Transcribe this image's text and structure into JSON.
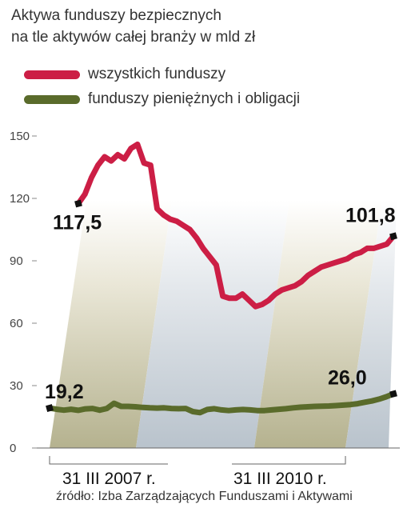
{
  "chart_data": {
    "type": "line",
    "title": "Aktywa  funduszy bezpiecznych",
    "subtitle": "na tle aktywów całej branży w mld zł",
    "ylim": [
      0,
      150
    ],
    "y_ticks": [
      "0",
      "30",
      "60",
      "90",
      "120",
      "150"
    ],
    "x_labels": [
      "31 III 2007 r.",
      "31 III 2010 r."
    ],
    "grid": false,
    "legend_position": "top-left",
    "series": [
      {
        "name": "wszystkich funduszy",
        "color": "#cc1e45",
        "start_label": "117,5",
        "end_label": "101,8",
        "values": [
          117.5,
          122,
          130,
          136,
          140,
          138,
          141,
          139,
          144,
          146,
          137,
          136,
          115,
          112,
          110,
          109,
          107,
          105,
          101,
          96,
          92,
          88,
          73,
          72,
          72,
          74,
          71,
          68,
          69,
          71,
          74,
          76,
          77,
          78,
          80,
          83,
          85,
          87,
          88,
          89,
          90,
          91,
          93,
          94,
          96,
          96,
          97,
          98,
          101.8
        ]
      },
      {
        "name": "funduszy pieniężnych i obligacji",
        "color": "#5a6b2b",
        "start_label": "19,2",
        "end_label": "26,0",
        "values": [
          19.2,
          18.6,
          18.2,
          18.6,
          18.1,
          18.8,
          19.0,
          18.2,
          19.0,
          21.5,
          20.0,
          20.0,
          19.8,
          19.5,
          19.3,
          19.2,
          19.3,
          19.0,
          18.9,
          19.0,
          17.5,
          17.0,
          18.5,
          18.9,
          18.3,
          18.0,
          18.3,
          18.5,
          18.3,
          18.0,
          18.0,
          18.3,
          18.6,
          18.9,
          19.3,
          19.6,
          19.8,
          20.0,
          20.1,
          20.2,
          20.4,
          20.6,
          20.9,
          21.3,
          22.0,
          22.6,
          23.5,
          24.6,
          26.0
        ]
      }
    ]
  },
  "source": "źródło: Izba Zarządzających Funduszami i Aktywami"
}
